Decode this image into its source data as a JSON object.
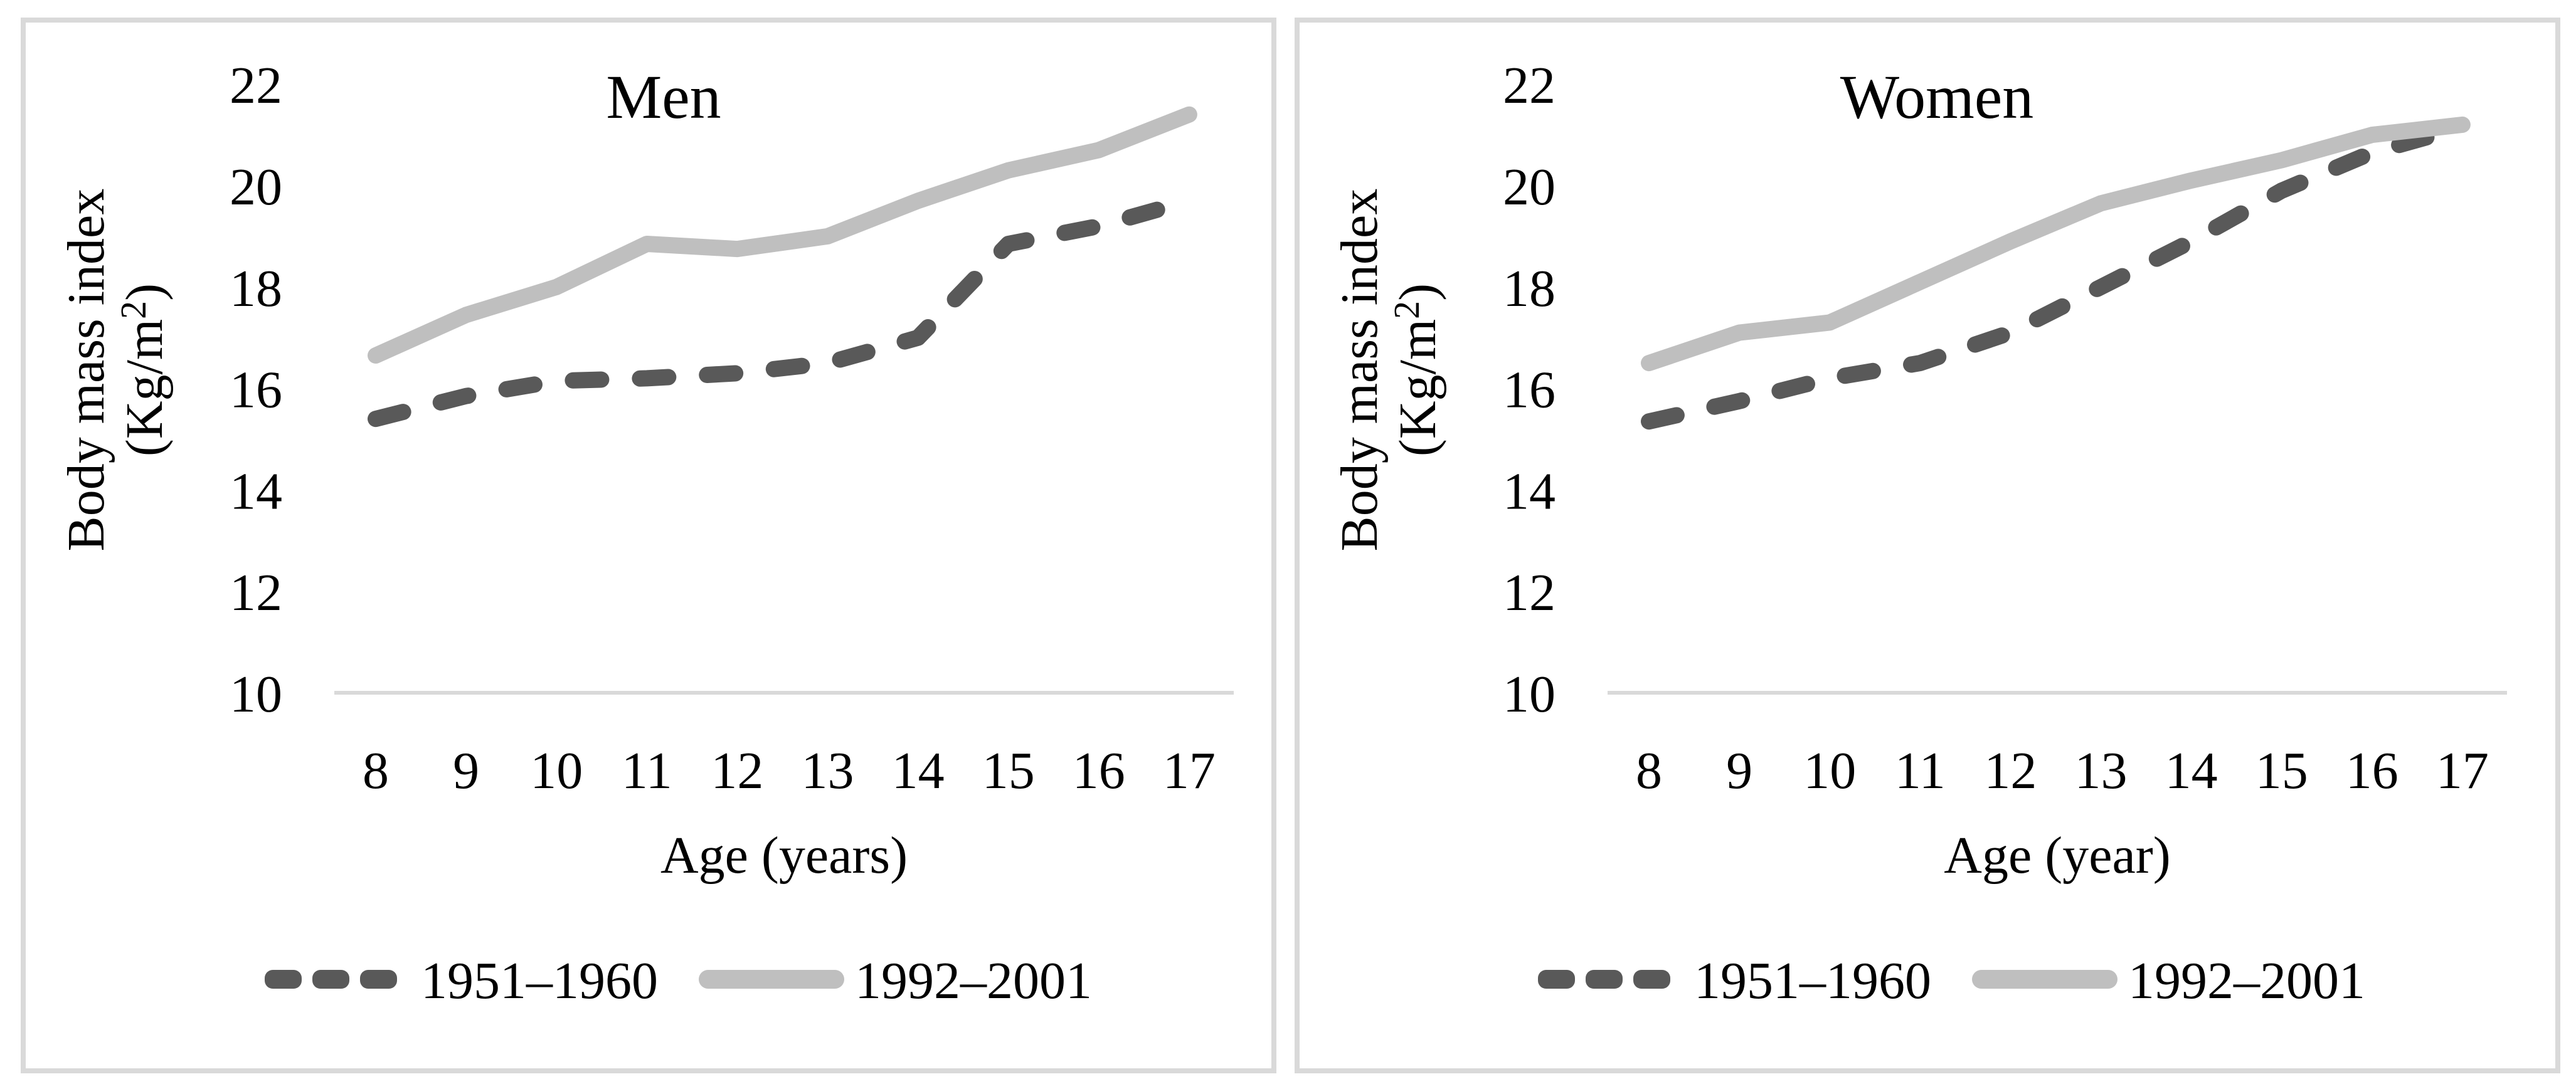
{
  "figure": {
    "description_title_left": "Men",
    "description_title_right": "Women",
    "background": "#ffffff"
  },
  "colors": {
    "series_1951_1960": "#595959",
    "series_1992_2001": "#BFBFBF",
    "axis_line": "#D9D9D9",
    "panel_border": "#D9D9D9",
    "text": "#000000"
  },
  "chart_data": [
    {
      "type": "line",
      "title": "Men",
      "xlabel": "Age (years)",
      "ylabel_line1": "Body mass index",
      "ylabel_line2": "(Kg/m²)",
      "x": [
        8,
        9,
        10,
        11,
        12,
        13,
        14,
        15,
        16,
        17
      ],
      "x_tick_labels": [
        "8",
        "9",
        "10",
        "11",
        "12",
        "13",
        "14",
        "15",
        "16",
        "17"
      ],
      "y_ticks": [
        10,
        12,
        14,
        16,
        18,
        20,
        22
      ],
      "ylim": [
        10,
        22
      ],
      "grid": "baseline-only",
      "legend_position": "bottom",
      "series": [
        {
          "name": "1951–1960",
          "style": "dashed",
          "color": "#595959",
          "values": [
            15.4,
            15.85,
            16.15,
            16.2,
            16.3,
            16.5,
            17.0,
            18.85,
            19.2,
            19.7
          ]
        },
        {
          "name": "1992–2001",
          "style": "solid",
          "color": "#BFBFBF",
          "values": [
            16.65,
            17.45,
            18.0,
            18.85,
            18.75,
            19.0,
            19.7,
            20.3,
            20.7,
            21.4
          ]
        }
      ]
    },
    {
      "type": "line",
      "title": "Women",
      "xlabel": "Age (year)",
      "ylabel_line1": "Body mass index",
      "ylabel_line2": "(Kg/m²)",
      "x": [
        8,
        9,
        10,
        11,
        12,
        13,
        14,
        15,
        16,
        17
      ],
      "x_tick_labels": [
        "8",
        "9",
        "10",
        "11",
        "12",
        "13",
        "14",
        "15",
        "16",
        "17"
      ],
      "y_ticks": [
        10,
        12,
        14,
        16,
        18,
        20,
        22
      ],
      "ylim": [
        10,
        22
      ],
      "grid": "baseline-only",
      "legend_position": "bottom",
      "series": [
        {
          "name": "1951–1960",
          "style": "dashed",
          "color": "#595959",
          "values": [
            15.35,
            15.75,
            16.2,
            16.5,
            17.1,
            18.0,
            18.9,
            19.9,
            20.65,
            21.15
          ]
        },
        {
          "name": "1992–2001",
          "style": "solid",
          "color": "#BFBFBF",
          "values": [
            16.5,
            17.1,
            17.3,
            18.1,
            18.9,
            19.65,
            20.1,
            20.5,
            21.0,
            21.2
          ]
        }
      ]
    }
  ]
}
